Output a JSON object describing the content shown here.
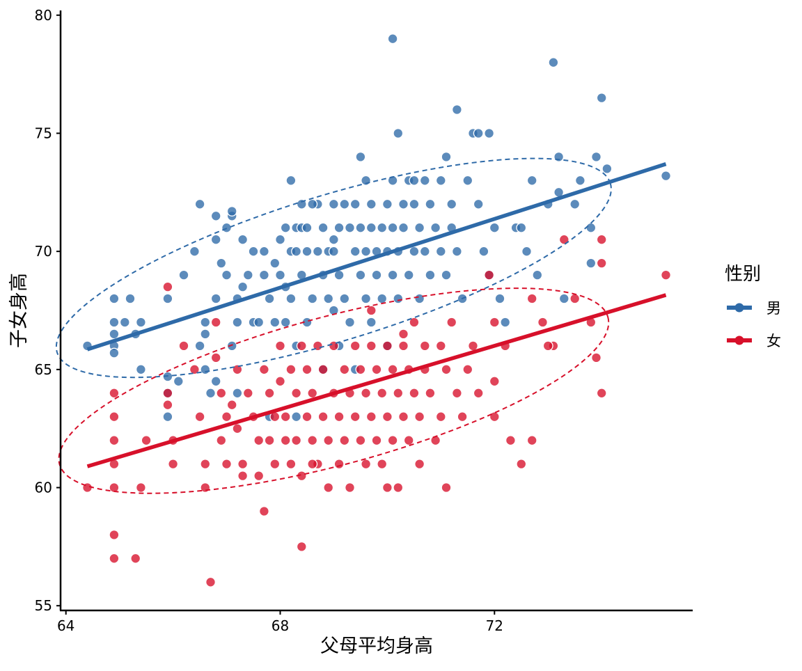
{
  "chart_data": {
    "type": "scatter",
    "xlabel": "父母平均身高",
    "ylabel": "子女身高",
    "xlim": [
      63.9,
      75.7
    ],
    "ylim": [
      54.8,
      80.2
    ],
    "x_ticks": [
      64,
      68,
      72
    ],
    "y_ticks": [
      55,
      60,
      65,
      70,
      75,
      80
    ],
    "grid": false,
    "legend": {
      "title": "性别",
      "position": "right",
      "entries": [
        {
          "label": "男",
          "color": "#2e6aa8"
        },
        {
          "label": "女",
          "color": "#d7102a"
        }
      ]
    },
    "series": [
      {
        "name": "男",
        "color": "#2e6aa8",
        "regression": {
          "x": [
            64.4,
            75.2
          ],
          "y": [
            65.85,
            73.7
          ]
        },
        "ellipse": {
          "center": [
            69.0,
            69.3
          ],
          "rx": 5.4,
          "ry": 5.6,
          "angle_deg": -17
        },
        "points": [
          [
            64.4,
            66
          ],
          [
            64.9,
            68
          ],
          [
            64.9,
            67
          ],
          [
            64.9,
            66.5
          ],
          [
            64.9,
            66
          ],
          [
            64.9,
            65.7
          ],
          [
            65.1,
            67
          ],
          [
            65.2,
            68
          ],
          [
            65.3,
            66.5
          ],
          [
            65.4,
            67
          ],
          [
            65.4,
            65
          ],
          [
            65.9,
            68
          ],
          [
            65.9,
            64.7
          ],
          [
            65.9,
            64
          ],
          [
            65.9,
            63
          ],
          [
            66.1,
            64.5
          ],
          [
            66.2,
            69
          ],
          [
            66.4,
            70
          ],
          [
            66.5,
            72
          ],
          [
            66.5,
            66
          ],
          [
            66.6,
            66.5
          ],
          [
            66.6,
            67
          ],
          [
            66.6,
            65
          ],
          [
            66.7,
            64
          ],
          [
            66.8,
            71.5
          ],
          [
            66.8,
            70.5
          ],
          [
            66.8,
            68
          ],
          [
            66.8,
            64.5
          ],
          [
            66.9,
            69.5
          ],
          [
            67.0,
            71
          ],
          [
            67.0,
            69
          ],
          [
            67.1,
            71.5
          ],
          [
            67.1,
            66
          ],
          [
            67.2,
            68
          ],
          [
            67.2,
            67
          ],
          [
            67.2,
            64
          ],
          [
            67.3,
            70.5
          ],
          [
            67.3,
            68.5
          ],
          [
            67.4,
            69
          ],
          [
            67.5,
            70
          ],
          [
            67.5,
            67
          ],
          [
            67.6,
            67
          ],
          [
            67.7,
            70
          ],
          [
            67.7,
            69
          ],
          [
            67.8,
            68
          ],
          [
            67.8,
            63
          ],
          [
            67.9,
            69.5
          ],
          [
            67.9,
            67
          ],
          [
            68.0,
            70.5
          ],
          [
            68.0,
            69
          ],
          [
            68.1,
            71
          ],
          [
            68.1,
            68.5
          ],
          [
            68.1,
            67
          ],
          [
            68.2,
            70
          ],
          [
            68.2,
            68
          ],
          [
            68.3,
            71
          ],
          [
            68.3,
            70
          ],
          [
            68.3,
            66
          ],
          [
            68.3,
            63
          ],
          [
            68.4,
            71
          ],
          [
            68.4,
            72
          ],
          [
            68.4,
            69
          ],
          [
            68.5,
            70
          ],
          [
            68.5,
            71
          ],
          [
            68.5,
            67
          ],
          [
            68.6,
            68
          ],
          [
            68.7,
            70
          ],
          [
            68.7,
            72
          ],
          [
            68.8,
            69
          ],
          [
            68.8,
            71
          ],
          [
            68.8,
            65
          ],
          [
            68.9,
            68
          ],
          [
            68.9,
            70
          ],
          [
            69.0,
            72
          ],
          [
            69.0,
            70
          ],
          [
            69.0,
            67.5
          ],
          [
            69.1,
            71
          ],
          [
            69.1,
            69
          ],
          [
            69.1,
            66
          ],
          [
            69.2,
            72
          ],
          [
            69.2,
            68
          ],
          [
            69.3,
            71
          ],
          [
            69.3,
            67
          ],
          [
            69.4,
            70
          ],
          [
            69.4,
            72
          ],
          [
            69.4,
            65
          ],
          [
            69.5,
            71
          ],
          [
            69.5,
            69
          ],
          [
            69.6,
            73
          ],
          [
            69.6,
            70
          ],
          [
            69.6,
            68
          ],
          [
            69.7,
            72
          ],
          [
            69.7,
            71
          ],
          [
            69.7,
            67
          ],
          [
            69.8,
            70
          ],
          [
            69.8,
            69
          ],
          [
            69.9,
            71
          ],
          [
            69.9,
            68
          ],
          [
            70.0,
            72
          ],
          [
            70.0,
            70
          ],
          [
            70.0,
            66
          ],
          [
            70.1,
            73
          ],
          [
            70.1,
            71
          ],
          [
            70.1,
            69
          ],
          [
            70.2,
            70
          ],
          [
            70.2,
            68
          ],
          [
            70.3,
            72
          ],
          [
            70.3,
            71
          ],
          [
            70.4,
            73
          ],
          [
            70.4,
            69
          ],
          [
            70.5,
            72
          ],
          [
            70.5,
            70
          ],
          [
            70.6,
            71
          ],
          [
            70.6,
            68
          ],
          [
            70.7,
            73
          ],
          [
            70.7,
            70
          ],
          [
            70.8,
            72
          ],
          [
            70.8,
            69
          ],
          [
            70.9,
            71
          ],
          [
            71.0,
            70
          ],
          [
            71.0,
            73
          ],
          [
            71.1,
            74
          ],
          [
            71.1,
            69
          ],
          [
            71.2,
            72
          ],
          [
            71.2,
            71
          ],
          [
            71.3,
            70
          ],
          [
            71.4,
            68
          ],
          [
            71.5,
            73
          ],
          [
            71.6,
            75
          ],
          [
            71.7,
            72
          ],
          [
            71.8,
            70
          ],
          [
            71.9,
            69
          ],
          [
            72.0,
            71
          ],
          [
            72.1,
            68
          ],
          [
            72.2,
            67
          ],
          [
            72.4,
            71
          ],
          [
            72.6,
            70
          ],
          [
            72.7,
            73
          ],
          [
            72.8,
            69
          ],
          [
            73.0,
            72
          ],
          [
            73.1,
            78
          ],
          [
            73.2,
            74
          ],
          [
            73.3,
            68
          ],
          [
            73.5,
            72
          ],
          [
            73.6,
            73
          ],
          [
            73.8,
            71
          ],
          [
            73.9,
            74
          ],
          [
            74.0,
            76.5
          ],
          [
            74.1,
            73.5
          ],
          [
            75.2,
            73.2
          ],
          [
            70.1,
            79
          ],
          [
            71.3,
            76
          ],
          [
            70.2,
            75
          ],
          [
            70.5,
            73
          ],
          [
            71.9,
            75
          ],
          [
            71.7,
            75
          ],
          [
            69.5,
            74
          ],
          [
            68.6,
            72
          ],
          [
            69.0,
            70.5
          ],
          [
            68.2,
            73
          ],
          [
            67.1,
            71.7
          ],
          [
            72.5,
            71
          ],
          [
            73.8,
            69.5
          ],
          [
            73.2,
            72.5
          ]
        ]
      },
      {
        "name": "女",
        "color": "#d7102a",
        "regression": {
          "x": [
            64.4,
            75.2
          ],
          "y": [
            60.9,
            68.15
          ]
        },
        "ellipse": {
          "center": [
            69.0,
            64.1
          ],
          "rx": 5.3,
          "ry": 5.7,
          "angle_deg": -15
        },
        "points": [
          [
            64.4,
            60
          ],
          [
            64.9,
            64
          ],
          [
            64.9,
            63
          ],
          [
            64.9,
            62
          ],
          [
            64.9,
            61
          ],
          [
            64.9,
            60
          ],
          [
            64.9,
            58
          ],
          [
            64.9,
            57
          ],
          [
            65.3,
            57
          ],
          [
            65.4,
            60
          ],
          [
            65.5,
            62
          ],
          [
            65.9,
            68.5
          ],
          [
            65.9,
            64
          ],
          [
            65.9,
            63.5
          ],
          [
            66.0,
            62
          ],
          [
            66.0,
            61
          ],
          [
            66.2,
            66
          ],
          [
            66.4,
            65
          ],
          [
            66.5,
            63
          ],
          [
            66.6,
            61
          ],
          [
            66.6,
            60
          ],
          [
            66.7,
            56
          ],
          [
            66.8,
            67
          ],
          [
            66.8,
            65.5
          ],
          [
            66.9,
            64
          ],
          [
            66.9,
            62
          ],
          [
            67.0,
            63
          ],
          [
            67.0,
            61
          ],
          [
            67.1,
            63.5
          ],
          [
            67.2,
            65
          ],
          [
            67.2,
            62.5
          ],
          [
            67.3,
            61
          ],
          [
            67.3,
            60.5
          ],
          [
            67.4,
            64
          ],
          [
            67.5,
            63
          ],
          [
            67.6,
            62
          ],
          [
            67.6,
            60.5
          ],
          [
            67.7,
            65
          ],
          [
            67.8,
            64
          ],
          [
            67.8,
            62
          ],
          [
            67.9,
            63
          ],
          [
            67.9,
            61
          ],
          [
            68.0,
            66
          ],
          [
            68.0,
            64.5
          ],
          [
            68.1,
            63
          ],
          [
            68.1,
            62
          ],
          [
            68.2,
            65
          ],
          [
            68.2,
            61
          ],
          [
            68.3,
            64
          ],
          [
            68.3,
            62
          ],
          [
            68.4,
            60.5
          ],
          [
            68.4,
            66
          ],
          [
            68.5,
            63
          ],
          [
            68.5,
            65
          ],
          [
            68.6,
            62
          ],
          [
            68.6,
            64
          ],
          [
            68.7,
            61
          ],
          [
            68.7,
            66
          ],
          [
            68.8,
            63
          ],
          [
            68.8,
            65
          ],
          [
            68.9,
            62
          ],
          [
            68.9,
            60
          ],
          [
            69.0,
            64
          ],
          [
            69.0,
            66
          ],
          [
            69.1,
            63
          ],
          [
            69.1,
            61
          ],
          [
            69.2,
            65
          ],
          [
            69.2,
            62
          ],
          [
            69.3,
            64
          ],
          [
            69.3,
            60
          ],
          [
            69.4,
            63
          ],
          [
            69.4,
            66
          ],
          [
            69.5,
            62
          ],
          [
            69.5,
            65
          ],
          [
            69.6,
            61
          ],
          [
            69.6,
            64
          ],
          [
            69.7,
            63
          ],
          [
            69.7,
            66
          ],
          [
            69.8,
            62
          ],
          [
            69.8,
            65
          ],
          [
            69.9,
            64
          ],
          [
            69.9,
            61
          ],
          [
            70.0,
            63
          ],
          [
            70.0,
            66
          ],
          [
            70.1,
            62
          ],
          [
            70.1,
            65
          ],
          [
            70.2,
            64
          ],
          [
            70.2,
            60
          ],
          [
            70.3,
            63
          ],
          [
            70.3,
            66
          ],
          [
            70.4,
            65
          ],
          [
            70.4,
            62
          ],
          [
            70.5,
            64
          ],
          [
            70.5,
            67
          ],
          [
            70.6,
            63
          ],
          [
            70.6,
            61
          ],
          [
            70.7,
            65
          ],
          [
            70.7,
            66
          ],
          [
            70.8,
            64
          ],
          [
            70.9,
            62
          ],
          [
            71.0,
            66
          ],
          [
            71.0,
            63
          ],
          [
            71.1,
            65
          ],
          [
            71.1,
            60
          ],
          [
            71.2,
            67
          ],
          [
            71.3,
            64
          ],
          [
            71.4,
            63
          ],
          [
            71.5,
            65
          ],
          [
            71.6,
            66
          ],
          [
            71.7,
            64
          ],
          [
            72.0,
            67
          ],
          [
            72.0,
            63
          ],
          [
            72.2,
            66
          ],
          [
            72.3,
            62
          ],
          [
            72.5,
            61
          ],
          [
            72.7,
            68
          ],
          [
            72.7,
            62
          ],
          [
            72.9,
            67
          ],
          [
            73.1,
            66
          ],
          [
            73.3,
            70.5
          ],
          [
            73.5,
            68
          ],
          [
            73.8,
            67
          ],
          [
            73.9,
            65.5
          ],
          [
            74.0,
            64
          ],
          [
            74.0,
            70.5
          ],
          [
            74.0,
            69.5
          ],
          [
            75.2,
            69
          ],
          [
            68.4,
            57.5
          ],
          [
            67.7,
            59
          ],
          [
            68.6,
            61
          ],
          [
            70.0,
            60
          ],
          [
            72.0,
            64.5
          ],
          [
            70.3,
            66.5
          ],
          [
            69.7,
            67.5
          ],
          [
            71.9,
            69
          ],
          [
            73.0,
            66
          ]
        ]
      }
    ]
  }
}
